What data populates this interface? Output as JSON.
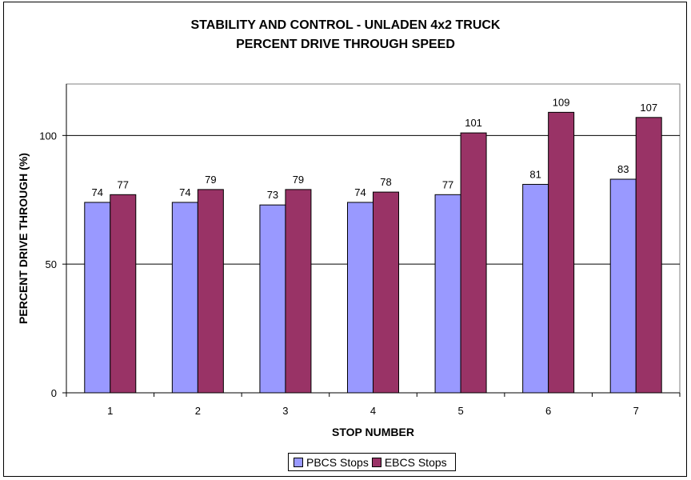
{
  "chart_data": {
    "type": "bar",
    "title": "STABILITY AND CONTROL - UNLADEN 4x2 TRUCK",
    "subtitle": "PERCENT DRIVE THROUGH SPEED",
    "xlabel": "STOP NUMBER",
    "ylabel": "PERCENT DRIVE THROUGH (%)",
    "categories": [
      "1",
      "2",
      "3",
      "4",
      "5",
      "6",
      "7"
    ],
    "ylim": [
      0,
      120
    ],
    "yticks": [
      0,
      50,
      100
    ],
    "grid": true,
    "legend_position": "bottom",
    "series": [
      {
        "name": "PBCS Stops",
        "values": [
          74,
          74,
          73,
          74,
          77,
          81,
          83
        ],
        "labels": [
          "74",
          "74",
          "73",
          "74",
          "77",
          "81",
          "83"
        ],
        "color": "#9999ff"
      },
      {
        "name": "EBCS Stops",
        "values": [
          77,
          79,
          79,
          78,
          101,
          109,
          107
        ],
        "labels": [
          "77",
          "79",
          "79",
          "78",
          "101",
          "109",
          "107"
        ],
        "color": "#993366"
      }
    ]
  }
}
